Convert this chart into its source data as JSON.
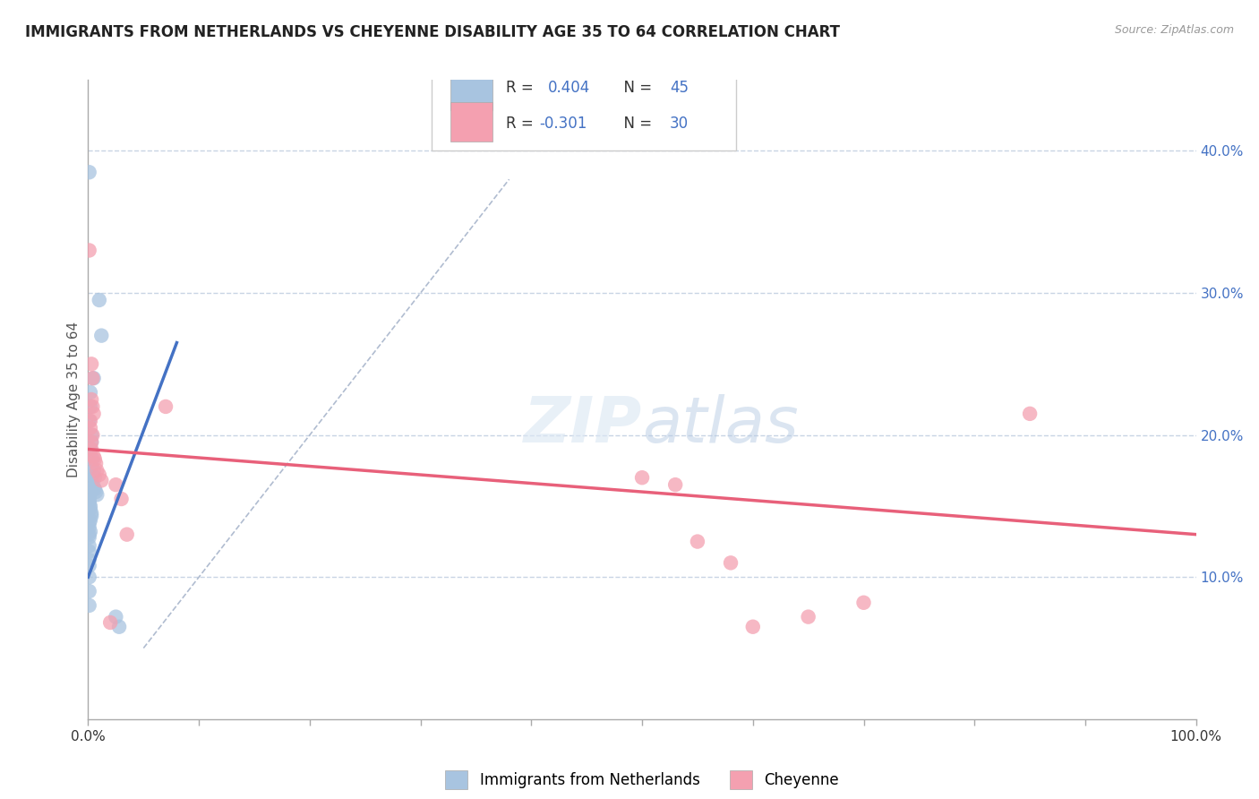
{
  "title": "IMMIGRANTS FROM NETHERLANDS VS CHEYENNE DISABILITY AGE 35 TO 64 CORRELATION CHART",
  "source": "Source: ZipAtlas.com",
  "ylabel": "Disability Age 35 to 64",
  "ylabel_right_ticks": [
    "10.0%",
    "20.0%",
    "30.0%",
    "40.0%"
  ],
  "ylabel_right_vals": [
    0.1,
    0.2,
    0.3,
    0.4
  ],
  "legend1_R": "0.404",
  "legend1_N": "45",
  "legend2_R": "-0.301",
  "legend2_N": "30",
  "blue_color": "#a8c4e0",
  "pink_color": "#f4a0b0",
  "blue_line_color": "#4472c4",
  "pink_line_color": "#e8607a",
  "diagonal_color": "#b0bcd0",
  "background": "#ffffff",
  "grid_color": "#c8d4e4",
  "blue_scatter": [
    [
      0.001,
      0.385
    ],
    [
      0.01,
      0.295
    ],
    [
      0.012,
      0.27
    ],
    [
      0.005,
      0.24
    ],
    [
      0.002,
      0.23
    ],
    [
      0.002,
      0.22
    ],
    [
      0.001,
      0.21
    ],
    [
      0.003,
      0.2
    ],
    [
      0.003,
      0.195
    ],
    [
      0.002,
      0.19
    ],
    [
      0.002,
      0.185
    ],
    [
      0.004,
      0.183
    ],
    [
      0.003,
      0.178
    ],
    [
      0.005,
      0.175
    ],
    [
      0.004,
      0.172
    ],
    [
      0.006,
      0.17
    ],
    [
      0.003,
      0.168
    ],
    [
      0.004,
      0.165
    ],
    [
      0.005,
      0.163
    ],
    [
      0.006,
      0.162
    ],
    [
      0.007,
      0.16
    ],
    [
      0.008,
      0.158
    ],
    [
      0.001,
      0.157
    ],
    [
      0.001,
      0.155
    ],
    [
      0.001,
      0.153
    ],
    [
      0.001,
      0.152
    ],
    [
      0.002,
      0.15
    ],
    [
      0.002,
      0.148
    ],
    [
      0.003,
      0.145
    ],
    [
      0.003,
      0.143
    ],
    [
      0.002,
      0.14
    ],
    [
      0.001,
      0.138
    ],
    [
      0.001,
      0.135
    ],
    [
      0.002,
      0.132
    ],
    [
      0.001,
      0.13
    ],
    [
      0.001,
      0.128
    ],
    [
      0.001,
      0.122
    ],
    [
      0.001,
      0.118
    ],
    [
      0.001,
      0.112
    ],
    [
      0.001,
      0.108
    ],
    [
      0.001,
      0.1
    ],
    [
      0.001,
      0.09
    ],
    [
      0.001,
      0.08
    ],
    [
      0.025,
      0.072
    ],
    [
      0.028,
      0.065
    ]
  ],
  "pink_scatter": [
    [
      0.001,
      0.33
    ],
    [
      0.003,
      0.25
    ],
    [
      0.004,
      0.24
    ],
    [
      0.003,
      0.225
    ],
    [
      0.004,
      0.22
    ],
    [
      0.005,
      0.215
    ],
    [
      0.002,
      0.21
    ],
    [
      0.002,
      0.205
    ],
    [
      0.004,
      0.2
    ],
    [
      0.003,
      0.195
    ],
    [
      0.003,
      0.19
    ],
    [
      0.005,
      0.185
    ],
    [
      0.006,
      0.183
    ],
    [
      0.007,
      0.18
    ],
    [
      0.008,
      0.175
    ],
    [
      0.01,
      0.172
    ],
    [
      0.012,
      0.168
    ],
    [
      0.025,
      0.165
    ],
    [
      0.03,
      0.155
    ],
    [
      0.035,
      0.13
    ],
    [
      0.07,
      0.22
    ],
    [
      0.85,
      0.215
    ],
    [
      0.5,
      0.17
    ],
    [
      0.53,
      0.165
    ],
    [
      0.55,
      0.125
    ],
    [
      0.58,
      0.11
    ],
    [
      0.7,
      0.082
    ],
    [
      0.65,
      0.072
    ],
    [
      0.02,
      0.068
    ],
    [
      0.6,
      0.065
    ]
  ],
  "xlim": [
    0.0,
    1.0
  ],
  "ylim": [
    0.0,
    0.45
  ],
  "blue_line_x": [
    0.0,
    0.08
  ],
  "blue_line_y": [
    0.1,
    0.265
  ],
  "pink_line_x": [
    0.0,
    1.0
  ],
  "pink_line_y": [
    0.19,
    0.13
  ],
  "diag_line_x": [
    0.05,
    0.38
  ],
  "diag_line_y": [
    0.05,
    0.38
  ]
}
